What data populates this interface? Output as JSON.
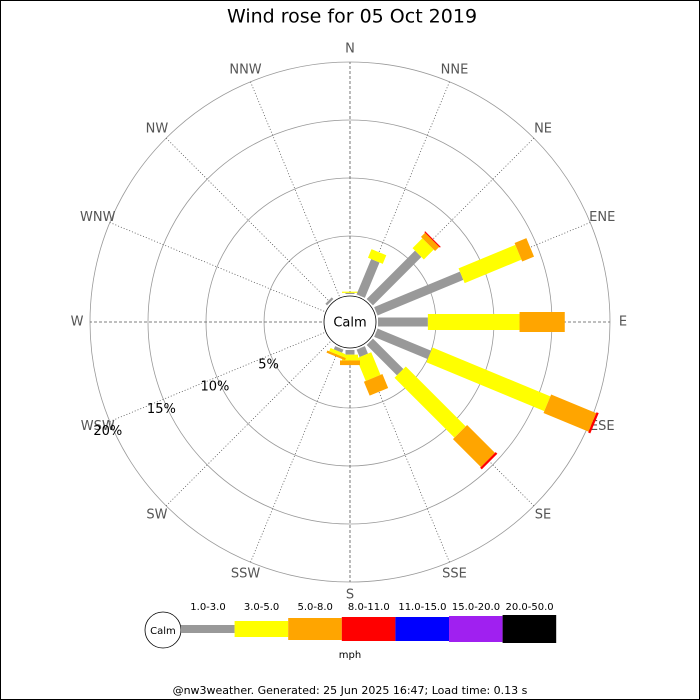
{
  "chart_data": {
    "type": "windrose",
    "title": "Wind rose for 05 Oct 2019",
    "categories": [
      "N",
      "NNE",
      "NE",
      "ENE",
      "E",
      "ESE",
      "SE",
      "SSE",
      "S",
      "SSW",
      "SW",
      "WSW",
      "W",
      "WNW",
      "NW",
      "NNW"
    ],
    "series": [
      {
        "name": "1.0-3.0",
        "color": "#999999",
        "values": [
          0.1,
          3.3,
          5.9,
          8.0,
          4.3,
          5.0,
          3.7,
          0.7,
          0.4,
          0.3,
          0,
          0,
          0,
          0,
          0.2,
          0
        ]
      },
      {
        "name": "3.0-5.0",
        "color": "#ffff00",
        "values": [
          0.1,
          0.8,
          1.2,
          5.3,
          7.9,
          11.0,
          7.3,
          2.1,
          0.5,
          0.3,
          0,
          0,
          0,
          0,
          0,
          0
        ]
      },
      {
        "name": "5.0-8.0",
        "color": "#ffa500",
        "values": [
          0,
          0,
          0.5,
          1.1,
          3.9,
          4.2,
          3.4,
          1.3,
          0.4,
          0.2,
          0,
          0,
          0,
          0,
          0,
          0
        ]
      },
      {
        "name": "8.0-11.0",
        "color": "#ff0000",
        "values": [
          0,
          0,
          0.1,
          0,
          0,
          0.2,
          0.2,
          0,
          0,
          0,
          0,
          0,
          0,
          0,
          0,
          0
        ]
      },
      {
        "name": "11.0-15.0",
        "color": "#0000ff",
        "values": [
          0,
          0,
          0,
          0,
          0,
          0,
          0,
          0,
          0,
          0,
          0,
          0,
          0,
          0,
          0,
          0
        ]
      },
      {
        "name": "15.0-20.0",
        "color": "#a020f0",
        "values": [
          0,
          0,
          0,
          0,
          0,
          0,
          0,
          0,
          0,
          0,
          0,
          0,
          0,
          0,
          0,
          0
        ]
      },
      {
        "name": "20.0-50.0",
        "color": "#000000",
        "values": [
          0,
          0,
          0,
          0,
          0,
          0,
          0,
          0,
          0,
          0,
          0,
          0,
          0,
          0,
          0,
          0
        ]
      }
    ],
    "rlim": [
      0,
      20
    ],
    "rticks": [
      {
        "value": 5,
        "label": "5%"
      },
      {
        "value": 10,
        "label": "10%"
      },
      {
        "value": 15,
        "label": "15%"
      },
      {
        "value": 20,
        "label": "20%"
      }
    ],
    "calm_label": "Calm",
    "unit": "mph"
  },
  "footer": "@nw3weather. Generated: 25 Jun 2025 16:47; Load time: 0.13 s"
}
